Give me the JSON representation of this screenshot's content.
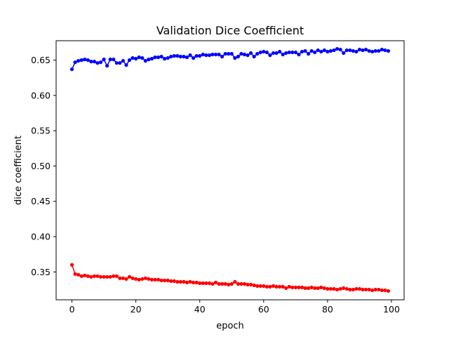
{
  "chart_data": {
    "type": "line",
    "title": "Validation Dice Coefficient",
    "xlabel": "epoch",
    "ylabel": "dice coefficient",
    "xlim": [
      -4.95,
      103.95
    ],
    "ylim": [
      0.3105,
      0.6775
    ],
    "xticks": [
      0,
      20,
      40,
      60,
      80,
      100
    ],
    "xtick_labels": [
      "0",
      "20",
      "40",
      "60",
      "80",
      "100"
    ],
    "yticks": [
      0.35,
      0.4,
      0.45,
      0.5,
      0.55,
      0.6,
      0.65
    ],
    "ytick_labels": [
      "0.35",
      "0.40",
      "0.45",
      "0.50",
      "0.55",
      "0.60",
      "0.65"
    ],
    "grid": false,
    "legend": "none",
    "colors": {
      "series_a": "#0000ff",
      "series_b": "#ff0000",
      "axes": "#000000"
    },
    "x": [
      0,
      1,
      2,
      3,
      4,
      5,
      6,
      7,
      8,
      9,
      10,
      11,
      12,
      13,
      14,
      15,
      16,
      17,
      18,
      19,
      20,
      21,
      22,
      23,
      24,
      25,
      26,
      27,
      28,
      29,
      30,
      31,
      32,
      33,
      34,
      35,
      36,
      37,
      38,
      39,
      40,
      41,
      42,
      43,
      44,
      45,
      46,
      47,
      48,
      49,
      50,
      51,
      52,
      53,
      54,
      55,
      56,
      57,
      58,
      59,
      60,
      61,
      62,
      63,
      64,
      65,
      66,
      67,
      68,
      69,
      70,
      71,
      72,
      73,
      74,
      75,
      76,
      77,
      78,
      79,
      80,
      81,
      82,
      83,
      84,
      85,
      86,
      87,
      88,
      89,
      90,
      91,
      92,
      93,
      94,
      95,
      96,
      97,
      98,
      99
    ],
    "series": [
      {
        "values": [
          0.637,
          0.647,
          0.649,
          0.65,
          0.651,
          0.65,
          0.648,
          0.648,
          0.646,
          0.647,
          0.651,
          0.642,
          0.651,
          0.651,
          0.646,
          0.646,
          0.649,
          0.643,
          0.65,
          0.653,
          0.652,
          0.654,
          0.653,
          0.649,
          0.651,
          0.652,
          0.654,
          0.654,
          0.655,
          0.652,
          0.653,
          0.655,
          0.656,
          0.656,
          0.655,
          0.655,
          0.654,
          0.657,
          0.653,
          0.656,
          0.656,
          0.658,
          0.657,
          0.657,
          0.658,
          0.658,
          0.658,
          0.655,
          0.659,
          0.659,
          0.659,
          0.653,
          0.655,
          0.659,
          0.658,
          0.657,
          0.66,
          0.655,
          0.659,
          0.661,
          0.662,
          0.661,
          0.657,
          0.66,
          0.66,
          0.662,
          0.658,
          0.66,
          0.661,
          0.661,
          0.661,
          0.658,
          0.662,
          0.663,
          0.659,
          0.663,
          0.661,
          0.664,
          0.662,
          0.664,
          0.662,
          0.663,
          0.664,
          0.666,
          0.665,
          0.66,
          0.664,
          0.664,
          0.663,
          0.662,
          0.665,
          0.664,
          0.665,
          0.663,
          0.662,
          0.663,
          0.663,
          0.665,
          0.664,
          0.663
        ]
      },
      {
        "values": [
          0.36,
          0.347,
          0.346,
          0.344,
          0.345,
          0.344,
          0.343,
          0.344,
          0.344,
          0.343,
          0.343,
          0.343,
          0.343,
          0.344,
          0.344,
          0.341,
          0.341,
          0.34,
          0.343,
          0.341,
          0.34,
          0.339,
          0.34,
          0.341,
          0.34,
          0.339,
          0.339,
          0.339,
          0.338,
          0.338,
          0.338,
          0.337,
          0.337,
          0.336,
          0.336,
          0.336,
          0.335,
          0.336,
          0.335,
          0.335,
          0.334,
          0.334,
          0.334,
          0.334,
          0.333,
          0.335,
          0.333,
          0.333,
          0.333,
          0.332,
          0.333,
          0.336,
          0.333,
          0.333,
          0.333,
          0.332,
          0.332,
          0.331,
          0.33,
          0.33,
          0.33,
          0.329,
          0.329,
          0.33,
          0.329,
          0.329,
          0.329,
          0.327,
          0.329,
          0.328,
          0.328,
          0.328,
          0.328,
          0.327,
          0.327,
          0.328,
          0.327,
          0.327,
          0.328,
          0.327,
          0.326,
          0.326,
          0.326,
          0.325,
          0.326,
          0.327,
          0.326,
          0.325,
          0.325,
          0.326,
          0.326,
          0.325,
          0.325,
          0.325,
          0.324,
          0.325,
          0.325,
          0.324,
          0.324,
          0.323
        ]
      }
    ]
  }
}
